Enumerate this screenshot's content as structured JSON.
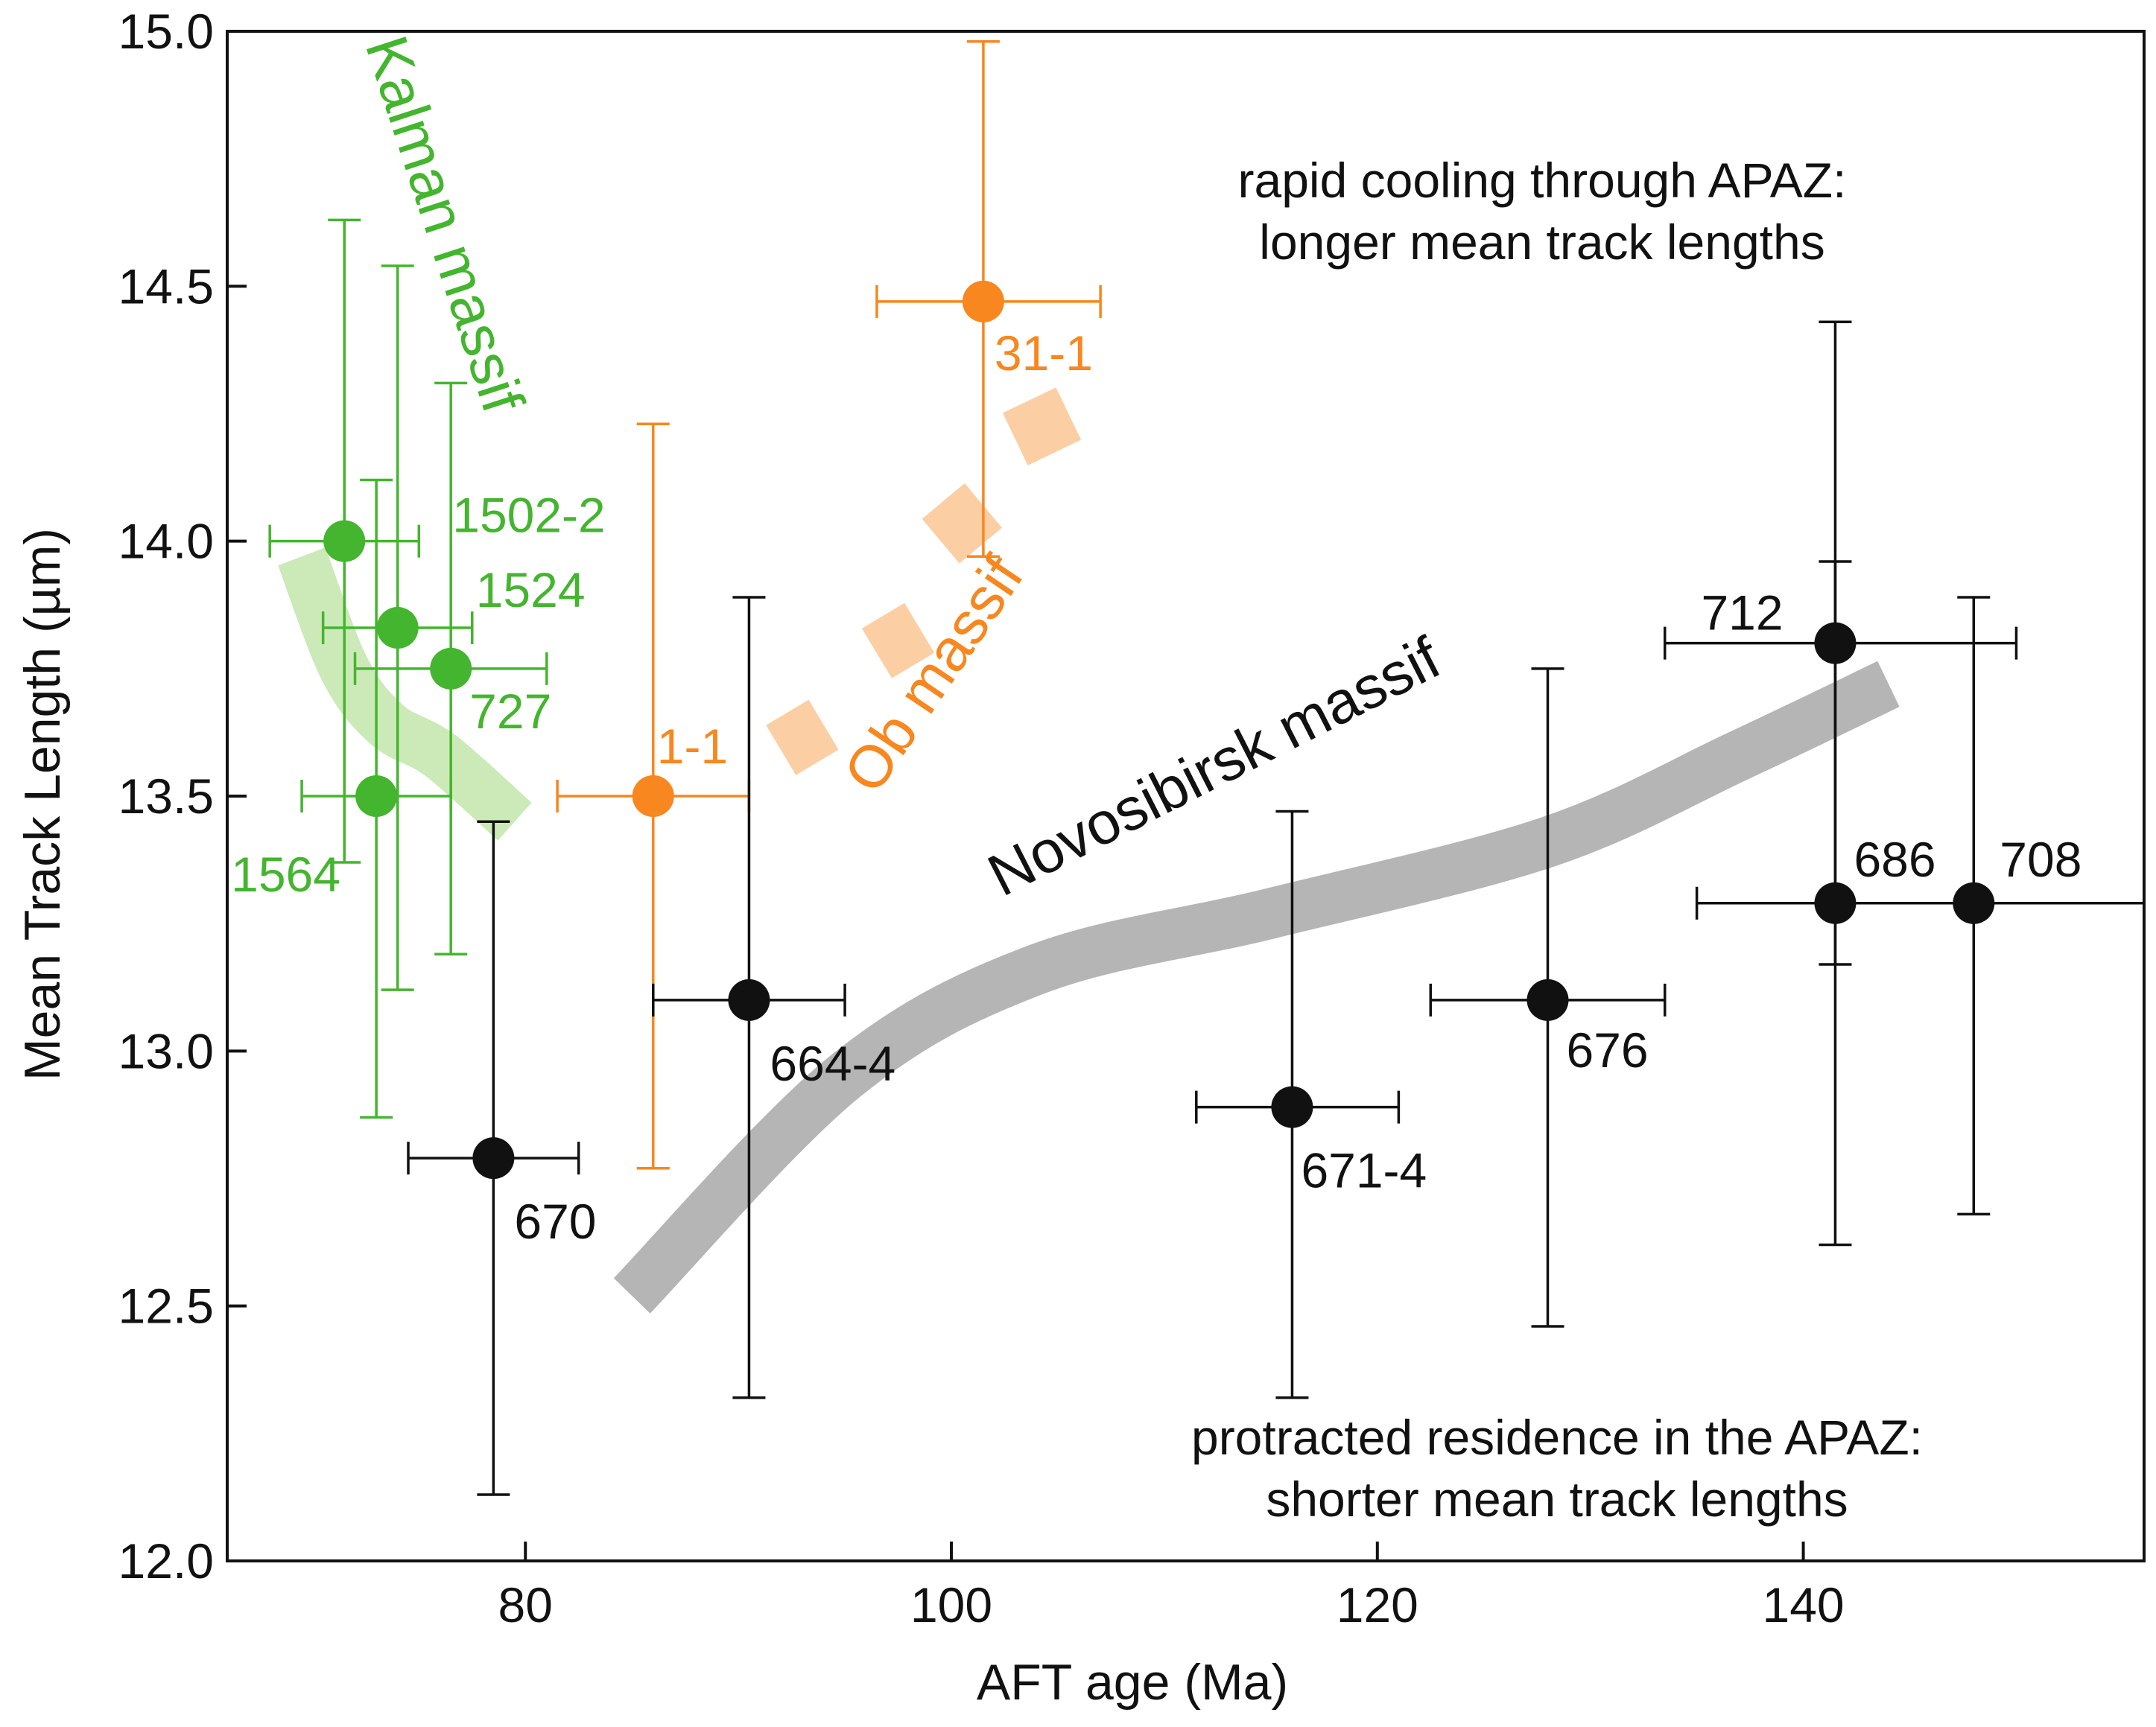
{
  "chart_data": {
    "type": "scatter",
    "xlabel": "AFT age (Ma)",
    "ylabel": "Mean Track Length (µm)",
    "xlim": [
      66,
      156
    ],
    "ylim": [
      12.0,
      15.0
    ],
    "xticks": [
      80,
      100,
      120,
      140
    ],
    "yticks": [
      12.0,
      12.5,
      13.0,
      13.5,
      14.0,
      14.5,
      15.0
    ],
    "xtick_labels": [
      "80",
      "100",
      "120",
      "140"
    ],
    "ytick_labels": [
      "12.0",
      "12.5",
      "13.0",
      "13.5",
      "14.0",
      "14.5",
      "15.0"
    ],
    "colors": {
      "kalman": "#44b52e",
      "ob": "#f7871e",
      "novosibirsk": "#111111",
      "kalman_band": "#cce9b8",
      "ob_band": "#fbcfa3",
      "novo_band": "#b5b5b5"
    },
    "series": [
      {
        "name": "Kalman massif",
        "color": "#44b52e",
        "points": [
          {
            "label": "1502-2",
            "x": 71.5,
            "y": 14.0,
            "xerr": [
              68.0,
              75.0
            ],
            "yerr": [
              13.37,
              14.63
            ]
          },
          {
            "label": "1524",
            "x": 74.0,
            "y": 13.83,
            "xerr": [
              70.5,
              77.5
            ],
            "yerr": [
              13.12,
              14.54
            ]
          },
          {
            "label": "727",
            "x": 76.5,
            "y": 13.75,
            "xerr": [
              72.0,
              81.0
            ],
            "yerr": [
              13.19,
              14.31
            ]
          },
          {
            "label": "1564",
            "x": 73.0,
            "y": 13.5,
            "xerr": [
              69.5,
              76.5
            ],
            "yerr": [
              12.87,
              14.12
            ]
          }
        ]
      },
      {
        "name": "Ob massif",
        "color": "#f7871e",
        "points": [
          {
            "label": "31-1",
            "x": 101.5,
            "y": 14.47,
            "xerr": [
              96.5,
              107.0
            ],
            "yerr": [
              13.97,
              14.98
            ]
          },
          {
            "label": "1-1",
            "x": 86.0,
            "y": 13.5,
            "xerr": [
              81.5,
              90.5
            ],
            "yerr": [
              12.77,
              14.23
            ]
          }
        ]
      },
      {
        "name": "Novosibirsk massif",
        "color": "#111111",
        "points": [
          {
            "label": "670",
            "x": 78.5,
            "y": 12.79,
            "xerr": [
              74.5,
              82.5
            ],
            "yerr": [
              12.13,
              13.45
            ]
          },
          {
            "label": "664-4",
            "x": 90.5,
            "y": 13.1,
            "xerr": [
              86.0,
              95.0
            ],
            "yerr": [
              12.32,
              13.89
            ]
          },
          {
            "label": "671-4",
            "x": 116.0,
            "y": 12.89,
            "xerr": [
              111.5,
              121.0
            ],
            "yerr": [
              12.32,
              13.47
            ]
          },
          {
            "label": "676",
            "x": 128.0,
            "y": 13.1,
            "xerr": [
              122.5,
              133.5
            ],
            "yerr": [
              12.46,
              13.75
            ]
          },
          {
            "label": "712",
            "x": 141.5,
            "y": 13.8,
            "xerr": [
              133.5,
              150.0
            ],
            "yerr": [
              13.17,
              14.43
            ]
          },
          {
            "label": "686",
            "x": 141.5,
            "y": 13.29,
            "xerr": [
              135.0,
              141.5
            ],
            "yerr": [
              12.62,
              13.96
            ]
          },
          {
            "label": "708",
            "x": 148.0,
            "y": 13.29,
            "xerr": [
              141.5,
              156.0
            ],
            "yerr": [
              12.68,
              13.89
            ]
          }
        ]
      }
    ],
    "annotations": {
      "kalman": "Kalman massif",
      "ob": "Ob massif",
      "novosibirsk": "Novosibirsk massif",
      "rapid_1": "rapid cooling through APAZ:",
      "rapid_2": "longer mean track lengths",
      "protracted_1": "protracted residence in the APAZ:",
      "protracted_2": "shorter mean track lengths"
    },
    "trends": {
      "kalman_band": [
        [
          69.5,
          13.97
        ],
        [
          71.5,
          13.75
        ],
        [
          73.5,
          13.64
        ],
        [
          76.0,
          13.58
        ],
        [
          79.5,
          13.45
        ]
      ],
      "ob_band_segments": [
        [
          [
            92.0,
            13.59
          ],
          [
            94.0,
            13.64
          ]
        ],
        [
          [
            96.5,
            13.78
          ],
          [
            98.5,
            13.83
          ]
        ],
        [
          [
            99.5,
            14.0
          ],
          [
            101.5,
            14.07
          ]
        ],
        [
          [
            103.0,
            14.2
          ],
          [
            105.5,
            14.25
          ]
        ]
      ],
      "novo_band": [
        [
          85.0,
          12.52
        ],
        [
          95.0,
          12.95
        ],
        [
          104.0,
          13.16
        ],
        [
          115.0,
          13.27
        ],
        [
          128.0,
          13.41
        ],
        [
          137.0,
          13.58
        ],
        [
          144.0,
          13.72
        ]
      ]
    }
  }
}
